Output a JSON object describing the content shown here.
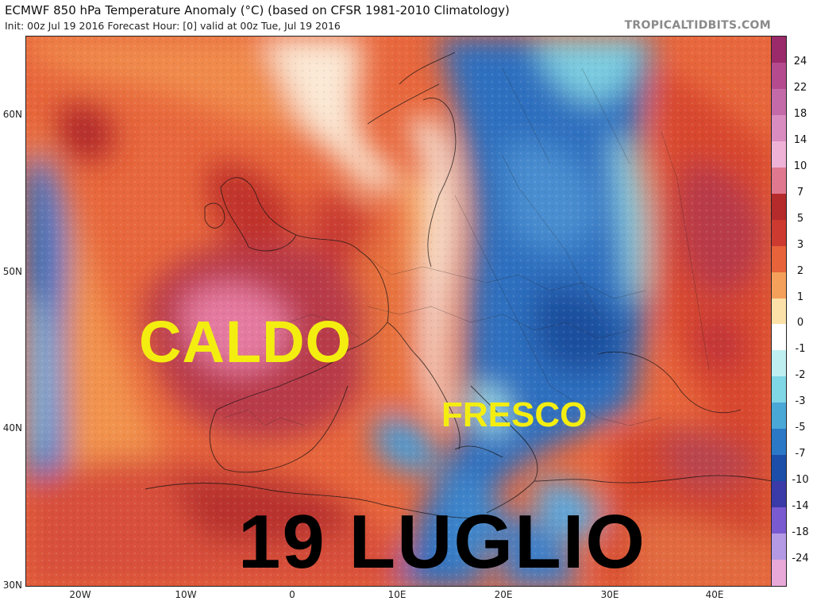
{
  "header": {
    "title": "ECMWF 850 hPa Temperature Anomaly (°C) (based on CFSR 1981-2010 Climatology)",
    "subtitle": "Init: 00z Jul 19 2016   Forecast Hour: [0]   valid at 00z Tue, Jul 19 2016",
    "credit": "TROPICALTIDBITS.COM"
  },
  "map": {
    "lat_ticks": [
      "60N",
      "50N",
      "40N",
      "30N"
    ],
    "lon_ticks": [
      "20W",
      "10W",
      "0",
      "10E",
      "20E",
      "30E",
      "40E"
    ],
    "overlay": {
      "hot_label": "CALDO",
      "cool_label": "FRESCO",
      "date_label": "19 LUGLIO"
    }
  },
  "colorbar": {
    "labels": [
      "24",
      "22",
      "18",
      "14",
      "10",
      "7",
      "5",
      "3",
      "2",
      "1",
      "0",
      "-1",
      "-2",
      "-3",
      "-5",
      "-7",
      "-10",
      "-14",
      "-18",
      "-24"
    ],
    "colors": [
      "#9b2a6a",
      "#b54a8e",
      "#c46aa8",
      "#d98cc0",
      "#eeb2d6",
      "#e07890",
      "#b52a2a",
      "#cc3a30",
      "#e8623a",
      "#f4a05a",
      "#fbe0a8",
      "#ffffff",
      "#bfeef0",
      "#7fd6e4",
      "#4aa8d6",
      "#2a78c6",
      "#1a4ea8",
      "#3a3aa8",
      "#7a5ad0",
      "#b49ae4",
      "#e8a8d8"
    ]
  },
  "colors": {
    "hot_label": "#f4ee10",
    "cool_label": "#f4ee10",
    "date_label": "#000000"
  }
}
